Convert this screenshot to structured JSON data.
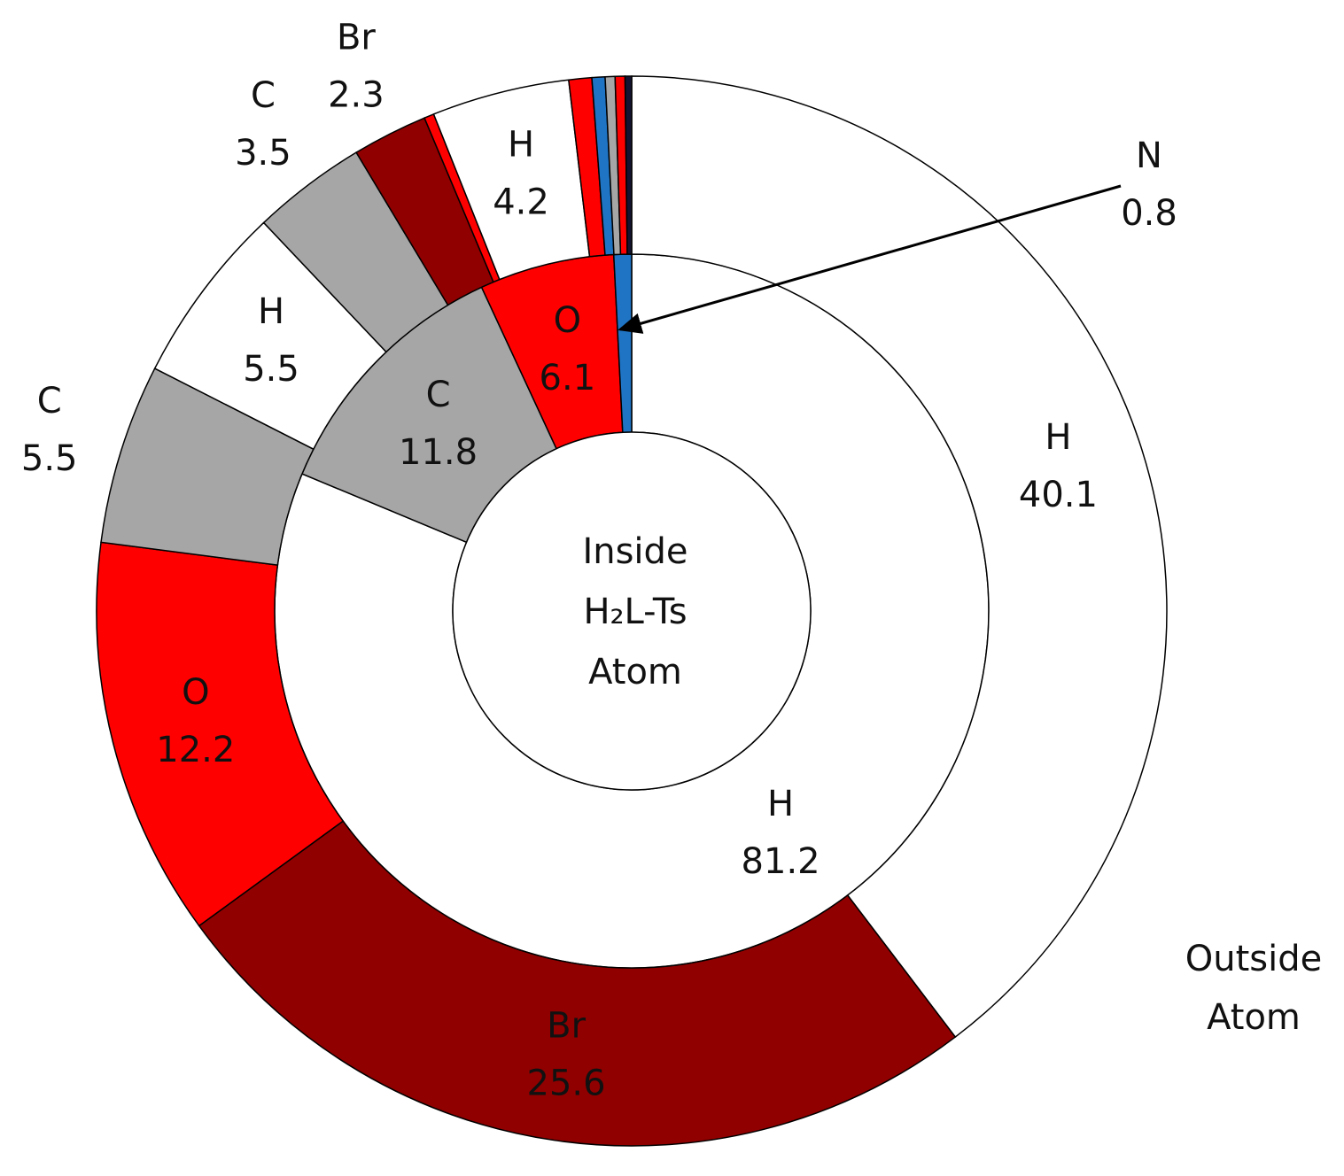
{
  "chart_data": {
    "type": "nested-donut",
    "inner_label": [
      "Inside",
      "H₂L-Ts",
      "Atom"
    ],
    "outer_label": [
      "Outside",
      "Atom"
    ],
    "rings": [
      {
        "categories": [
          "H",
          "C",
          "O",
          "N"
        ],
        "values": [
          81.2,
          11.8,
          6.1,
          0.8
        ],
        "colors": [
          "#ffffff",
          "#a6a6a6",
          "#ff0000",
          "#1f74c4"
        ]
      },
      {
        "categories": [
          "H",
          "Br",
          "O",
          "C",
          "H",
          "C",
          "Br",
          null,
          "H",
          null,
          null,
          null,
          null,
          null
        ],
        "values": [
          40.1,
          25.6,
          12.2,
          5.5,
          5.5,
          3.5,
          2.3,
          0.3,
          4.2,
          0.7,
          0.4,
          0.3,
          0.3,
          0.2
        ],
        "colors": [
          "#ffffff",
          "#900000",
          "#ff0000",
          "#a6a6a6",
          "#ffffff",
          "#a6a6a6",
          "#900000",
          "#ff0000",
          "#ffffff",
          "#ff0000",
          "#1f74c4",
          "#a6a6a6",
          "#ff0000",
          "#141432"
        ]
      }
    ]
  }
}
